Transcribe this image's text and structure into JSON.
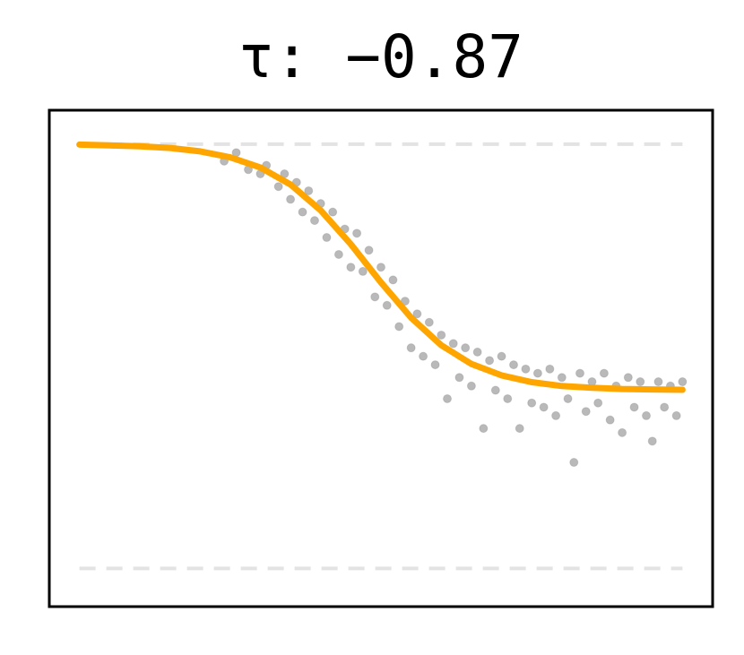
{
  "chart_data": {
    "type": "scatter",
    "title": "τ: −0.87",
    "xlim": [
      -0.05,
      1.05
    ],
    "ylim": [
      -0.09,
      1.08
    ],
    "reference_lines": {
      "values": [
        0,
        1
      ],
      "color": "#e3e3e3",
      "dashed": true
    },
    "scatter": {
      "color": "#808080",
      "x": [
        0.24,
        0.26,
        0.28,
        0.3,
        0.31,
        0.33,
        0.34,
        0.35,
        0.36,
        0.37,
        0.38,
        0.39,
        0.4,
        0.41,
        0.42,
        0.43,
        0.44,
        0.45,
        0.46,
        0.47,
        0.48,
        0.49,
        0.5,
        0.51,
        0.52,
        0.53,
        0.54,
        0.55,
        0.56,
        0.57,
        0.58,
        0.59,
        0.6,
        0.61,
        0.62,
        0.63,
        0.64,
        0.65,
        0.66,
        0.67,
        0.68,
        0.69,
        0.7,
        0.71,
        0.72,
        0.73,
        0.74,
        0.75,
        0.76,
        0.77,
        0.78,
        0.79,
        0.8,
        0.81,
        0.82,
        0.83,
        0.84,
        0.85,
        0.86,
        0.87,
        0.88,
        0.89,
        0.9,
        0.91,
        0.92,
        0.93,
        0.94,
        0.95,
        0.96,
        0.97,
        0.98,
        0.99,
        1.0
      ],
      "y": [
        0.96,
        0.98,
        0.94,
        0.93,
        0.95,
        0.9,
        0.93,
        0.87,
        0.91,
        0.84,
        0.89,
        0.82,
        0.86,
        0.78,
        0.84,
        0.74,
        0.8,
        0.71,
        0.79,
        0.7,
        0.75,
        0.64,
        0.71,
        0.62,
        0.68,
        0.57,
        0.63,
        0.52,
        0.6,
        0.5,
        0.58,
        0.48,
        0.55,
        0.4,
        0.53,
        0.45,
        0.52,
        0.43,
        0.51,
        0.33,
        0.49,
        0.42,
        0.5,
        0.4,
        0.48,
        0.33,
        0.47,
        0.39,
        0.46,
        0.38,
        0.47,
        0.36,
        0.45,
        0.4,
        0.25,
        0.46,
        0.37,
        0.44,
        0.39,
        0.46,
        0.35,
        0.43,
        0.32,
        0.45,
        0.38,
        0.44,
        0.36,
        0.3,
        0.44,
        0.38,
        0.43,
        0.36,
        0.44
      ]
    },
    "line": {
      "color": "#ffa500",
      "x": [
        0,
        0.05,
        0.1,
        0.15,
        0.2,
        0.25,
        0.3,
        0.35,
        0.4,
        0.45,
        0.5,
        0.55,
        0.6,
        0.65,
        0.7,
        0.75,
        0.8,
        0.85,
        0.9,
        0.95,
        1.0
      ],
      "y": [
        0.999,
        0.997,
        0.995,
        0.991,
        0.983,
        0.969,
        0.945,
        0.905,
        0.844,
        0.764,
        0.674,
        0.591,
        0.526,
        0.482,
        0.455,
        0.439,
        0.43,
        0.426,
        0.423,
        0.422,
        0.421
      ]
    }
  }
}
